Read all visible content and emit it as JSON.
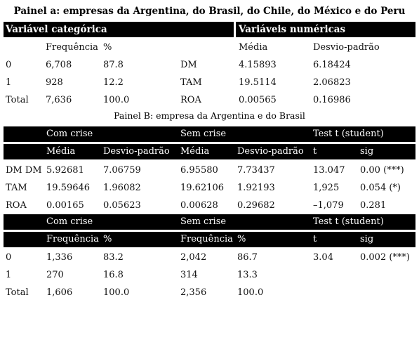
{
  "panel_a": {
    "title": "Painel a: empresas da Argentina, do Brasil, do Chile, do México e do Peru",
    "left_header": "Variável categórica",
    "right_header": "Variáveis numéricas",
    "left_subheaders": [
      "Frequência",
      "%"
    ],
    "right_subheaders": [
      "Média",
      "Desvio-padrão"
    ],
    "left_rows": [
      {
        "label": "0",
        "freq": "6,708",
        "pct": "87.8"
      },
      {
        "label": "1",
        "freq": "928",
        "pct": "12.2"
      },
      {
        "label": "Total",
        "freq": "7,636",
        "pct": "100.0"
      }
    ],
    "right_rows": [
      {
        "label": "DM",
        "mean": "4.15893",
        "sd": "6.18424"
      },
      {
        "label": "TAM",
        "mean": "19.5114",
        "sd": "2.06823"
      },
      {
        "label": "ROA",
        "mean": "0.00565",
        "sd": "0.16986"
      }
    ]
  },
  "panel_b": {
    "title": "Painel B: empresa da Argentina e do Brasil",
    "group_headers": [
      "Com crise",
      "Sem crise",
      "Test t (student)"
    ],
    "sub_headers_1": [
      "Média",
      "Desvio-padrão",
      "Média",
      "Desvio-padrão",
      "t",
      "sig"
    ],
    "rows_1": [
      [
        "DM DM",
        "5.92681",
        "7.06759",
        "6.95580",
        "7.73437",
        "13.047",
        "0.00 (***)"
      ],
      [
        "TAM",
        "19.59646",
        "1.96082",
        "19.62106",
        "1.92193",
        "1,925",
        "0.054 (*)"
      ],
      [
        "ROA",
        "0.00165",
        "0.05623",
        "0.00628",
        "0.29682",
        "–1,079",
        "0.281"
      ]
    ],
    "group_headers_2": [
      "Com crise",
      "Sem crise",
      "Test t (student)"
    ],
    "sub_headers_2": [
      "Frequência",
      "%",
      "Frequência",
      "%",
      "t",
      "sig"
    ],
    "rows_2": [
      [
        "0",
        "1,336",
        "83.2",
        "2,042",
        "86.7",
        "3.04",
        "0.002 (***)"
      ],
      [
        "1",
        "270",
        "16.8",
        "314",
        "13.3",
        "",
        ""
      ],
      [
        "Total",
        "1,606",
        "100.0",
        "2,356",
        "100.0",
        "",
        ""
      ]
    ]
  }
}
